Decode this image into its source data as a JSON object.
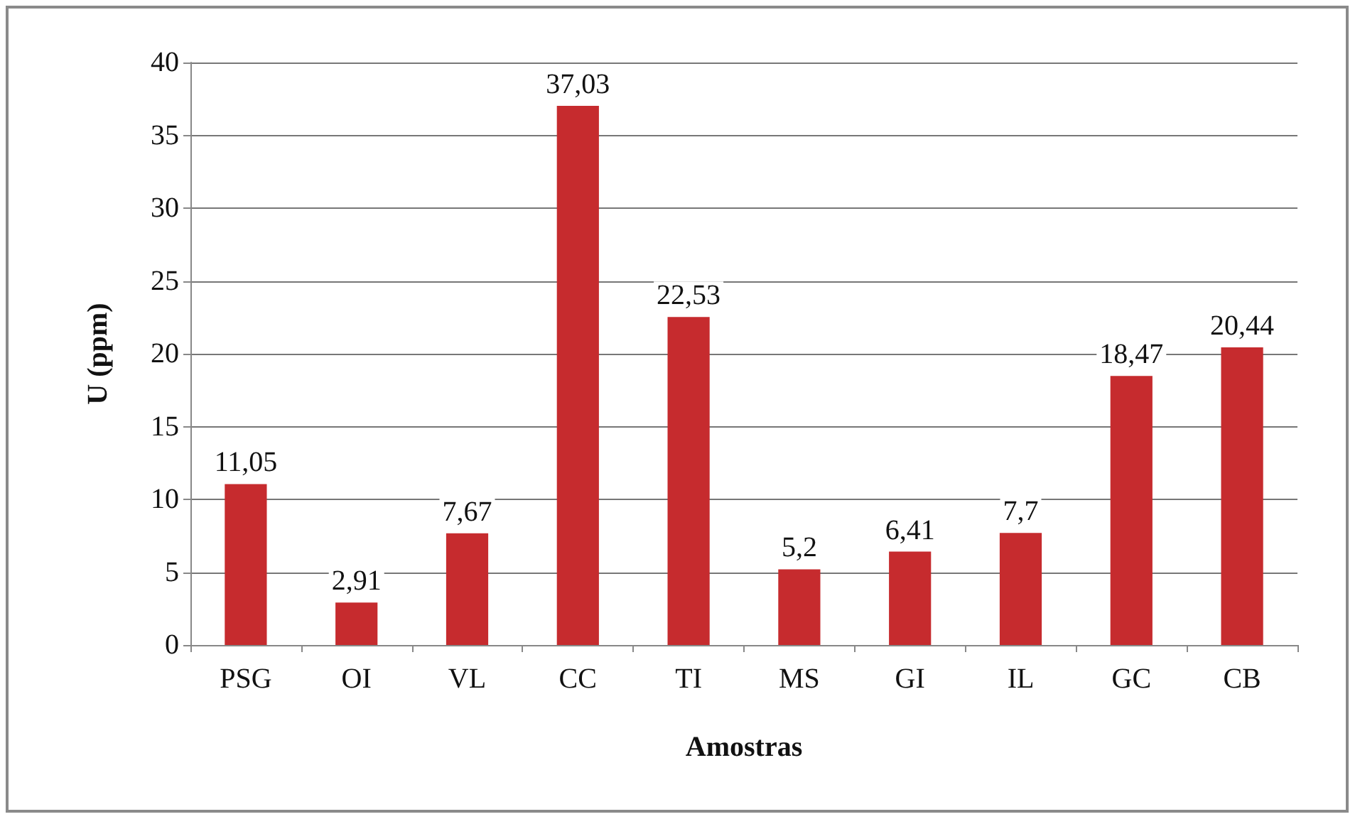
{
  "chart_data": {
    "type": "bar",
    "xlabel": "Amostras",
    "ylabel": "U (ppm)",
    "categories": [
      "PSG",
      "OI",
      "VL",
      "CC",
      "TI",
      "MS",
      "GI",
      "IL",
      "GC",
      "CB"
    ],
    "values": [
      11.05,
      2.91,
      7.67,
      37.03,
      22.53,
      5.2,
      6.41,
      7.7,
      18.47,
      20.44
    ],
    "value_labels": [
      "11,05",
      "2,91",
      "7,67",
      "37,03",
      "22,53",
      "5,2",
      "6,41",
      "7,7",
      "18,47",
      "20,44"
    ],
    "color": "#c62b2e",
    "ylim": [
      0,
      40
    ],
    "yticks": [
      0,
      5,
      10,
      15,
      20,
      25,
      30,
      35,
      40
    ],
    "grid": "y"
  }
}
